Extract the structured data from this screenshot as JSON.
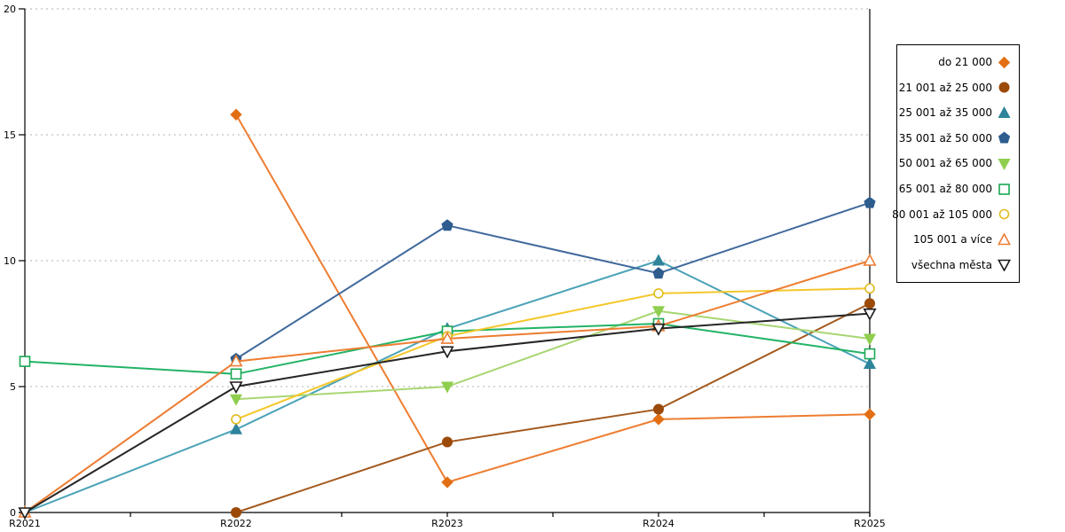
{
  "chart_data": {
    "type": "line",
    "title": "",
    "xlabel": "",
    "ylabel": "",
    "categories": [
      "R2021",
      "R2022",
      "R2023",
      "R2024",
      "R2025"
    ],
    "ylim": [
      0,
      20
    ],
    "yticks": [
      0,
      5,
      10,
      15,
      20
    ],
    "grid": "horizontal-dashed",
    "legend_position": "right",
    "axis_color": "#000000",
    "grid_color": "#b0b0b0",
    "series": [
      {
        "name": "do 21 000",
        "marker": "diamond",
        "filled": true,
        "marker_color": "#e36f14",
        "line_color": "#ed7d31",
        "values": [
          null,
          15.8,
          1.2,
          3.7,
          3.9
        ]
      },
      {
        "name": "21 001 až 25 000",
        "marker": "circle",
        "filled": true,
        "marker_color": "#9c4a08",
        "line_color": "#a35a1f",
        "values": [
          null,
          0.0,
          2.8,
          4.1,
          8.3
        ]
      },
      {
        "name": "25 001 až 35 000",
        "marker": "triangle-up",
        "filled": true,
        "marker_color": "#2f849b",
        "line_color": "#4ba3b8",
        "values": [
          0.0,
          3.3,
          7.3,
          10.0,
          5.9
        ]
      },
      {
        "name": "35 001 až 50 000",
        "marker": "pentagon",
        "filled": true,
        "marker_color": "#2e5c8f",
        "line_color": "#41699c",
        "values": [
          null,
          6.1,
          11.4,
          9.5,
          12.3
        ]
      },
      {
        "name": "50 001 až 65 000",
        "marker": "triangle-down",
        "filled": true,
        "marker_color": "#8fce4e",
        "line_color": "#a8d672",
        "values": [
          null,
          4.5,
          5.0,
          8.0,
          6.9
        ]
      },
      {
        "name": "65 001 až 80 000",
        "marker": "square",
        "filled": false,
        "marker_color": "#1ba753",
        "line_color": "#22b366",
        "values": [
          6.0,
          5.5,
          7.2,
          7.5,
          6.3
        ]
      },
      {
        "name": "80 001 až 105 000",
        "marker": "circle",
        "filled": false,
        "marker_color": "#e0bc1e",
        "line_color": "#f5c72b",
        "values": [
          null,
          3.7,
          7.0,
          8.7,
          8.9
        ]
      },
      {
        "name": "105 001 a více",
        "marker": "triangle-up",
        "filled": false,
        "marker_color": "#ed7d31",
        "line_color": "#ed7d31",
        "values": [
          0.0,
          6.0,
          6.9,
          7.4,
          10.0
        ]
      },
      {
        "name": "všechna města",
        "marker": "triangle-down",
        "filled": false,
        "marker_color": "#1a1a1a",
        "line_color": "#262626",
        "values": [
          0.0,
          5.0,
          6.4,
          7.3,
          7.9
        ]
      }
    ]
  }
}
